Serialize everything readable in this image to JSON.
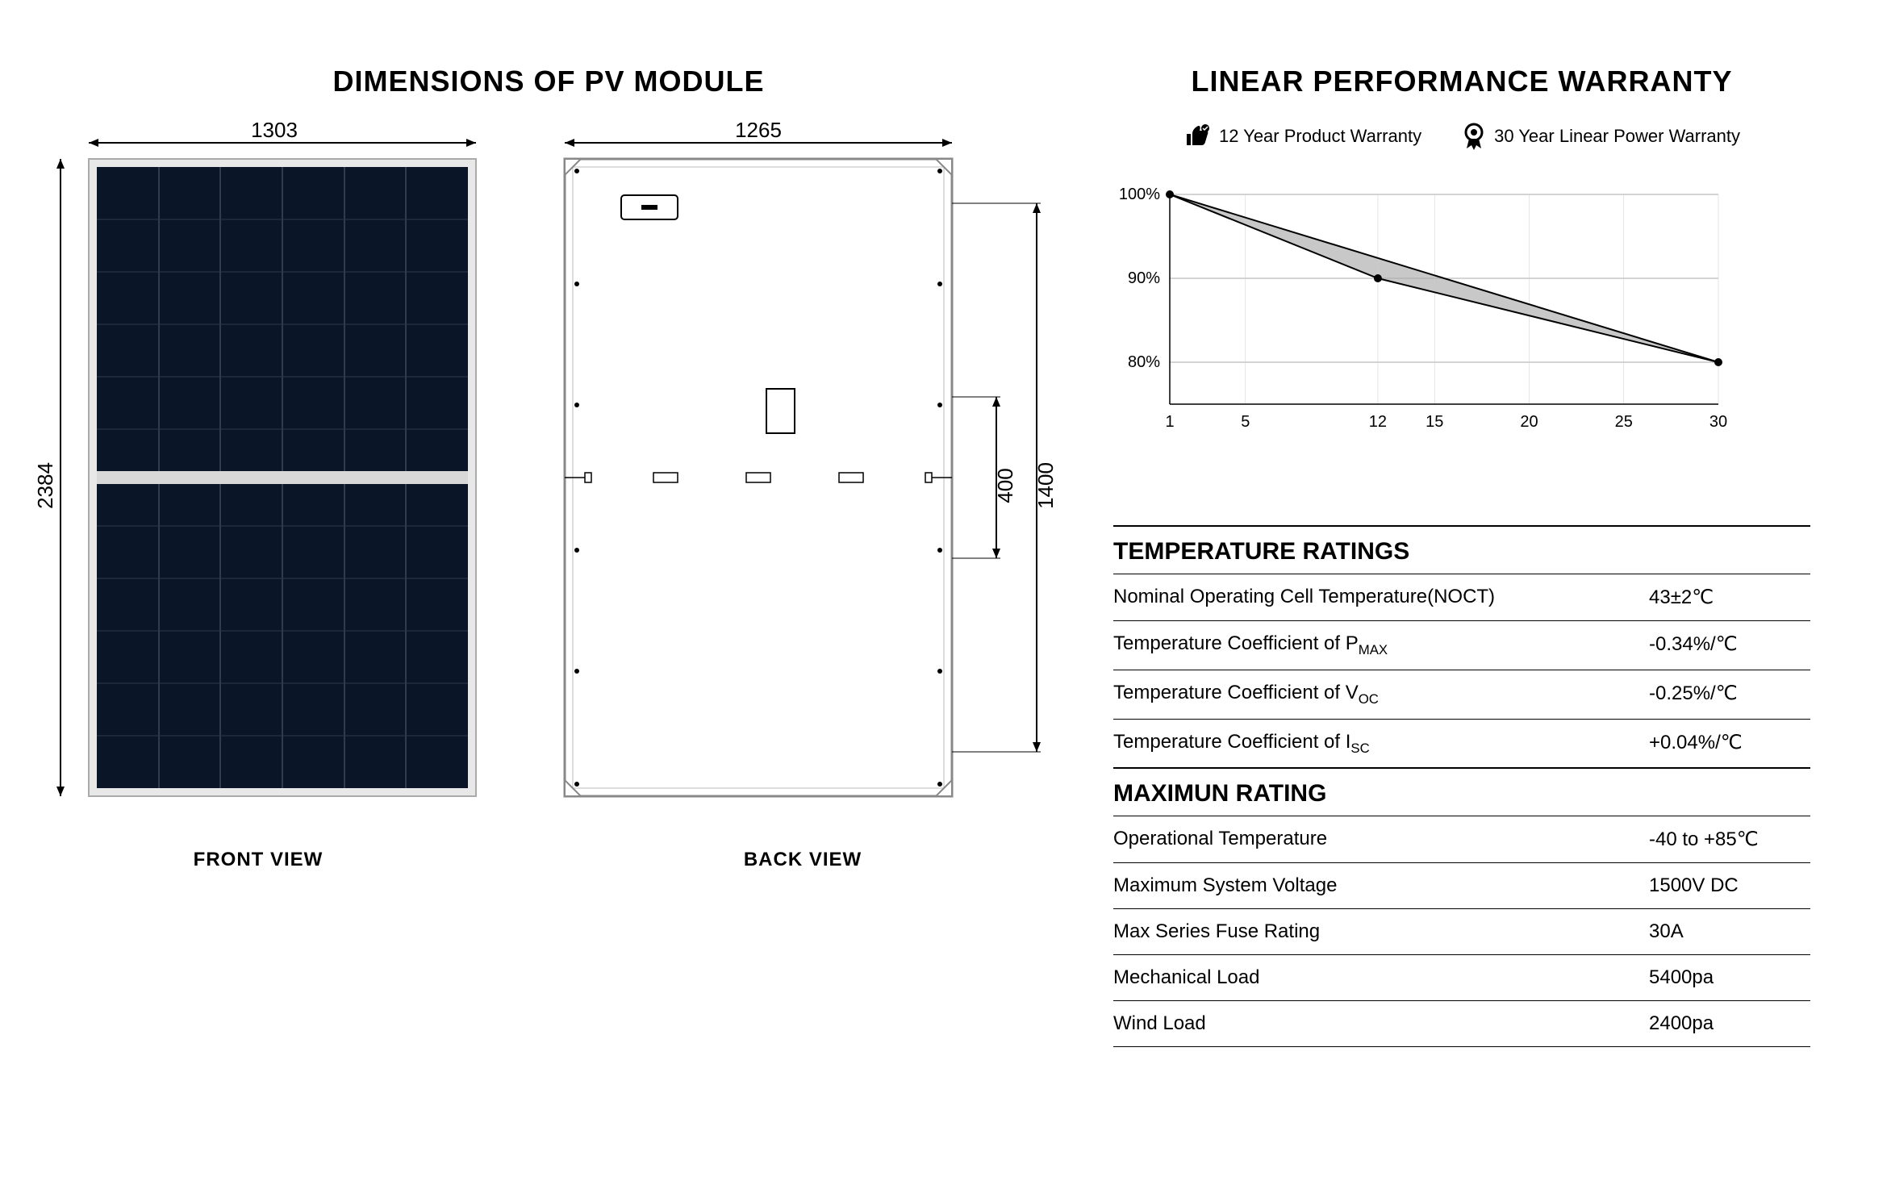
{
  "dimensions": {
    "title": "DIMENSIONS OF PV MODULE",
    "front_width": "1303",
    "front_height": "2384",
    "back_width": "1265",
    "back_dim_1400": "1400",
    "back_dim_400": "400",
    "front_label": "FRONT VIEW",
    "back_label": "BACK VIEW",
    "panel_color": "#0a1628",
    "cell_line_color": "#2a3a4a",
    "frame_color": "#cccccc",
    "back_frame_color": "#888888",
    "dim_line_color": "#000000"
  },
  "warranty": {
    "title": "LINEAR PERFORMANCE WARRANTY",
    "product_warranty": "12 Year Product Warranty",
    "power_warranty": "30 Year Linear Power Warranty",
    "chart": {
      "y_labels": [
        "100%",
        "90%",
        "80%"
      ],
      "x_labels": [
        "1",
        "5",
        "12",
        "15",
        "20",
        "25",
        "30"
      ],
      "fill_color": "#c8c8c8",
      "line_color": "#000000",
      "grid_color": "#999999",
      "point1": {
        "year": 12,
        "pct": 90
      },
      "point2": {
        "year": 30,
        "pct": 80
      }
    }
  },
  "temp_ratings": {
    "title": "TEMPERATURE RATINGS",
    "rows": [
      {
        "label": "Nominal Operating Cell Temperature(NOCT)",
        "value": "43±2℃"
      },
      {
        "label_html": "Temperature Coefficient of P<sub>MAX</sub>",
        "value": "-0.34%/℃"
      },
      {
        "label_html": "Temperature Coefficient of V<sub>OC</sub>",
        "value": "-0.25%/℃"
      },
      {
        "label_html": "Temperature Coefficient of I<sub>SC</sub>",
        "value": "+0.04%/℃"
      }
    ]
  },
  "max_rating": {
    "title": "MAXIMUN RATING",
    "rows": [
      {
        "label": "Operational Temperature",
        "value": "-40 to +85℃"
      },
      {
        "label": "Maximum System Voltage",
        "value": "1500V DC"
      },
      {
        "label": "Max Series Fuse Rating",
        "value": "30A"
      },
      {
        "label": "Mechanical Load",
        "value": "5400pa"
      },
      {
        "label": "Wind Load",
        "value": "2400pa"
      }
    ]
  }
}
